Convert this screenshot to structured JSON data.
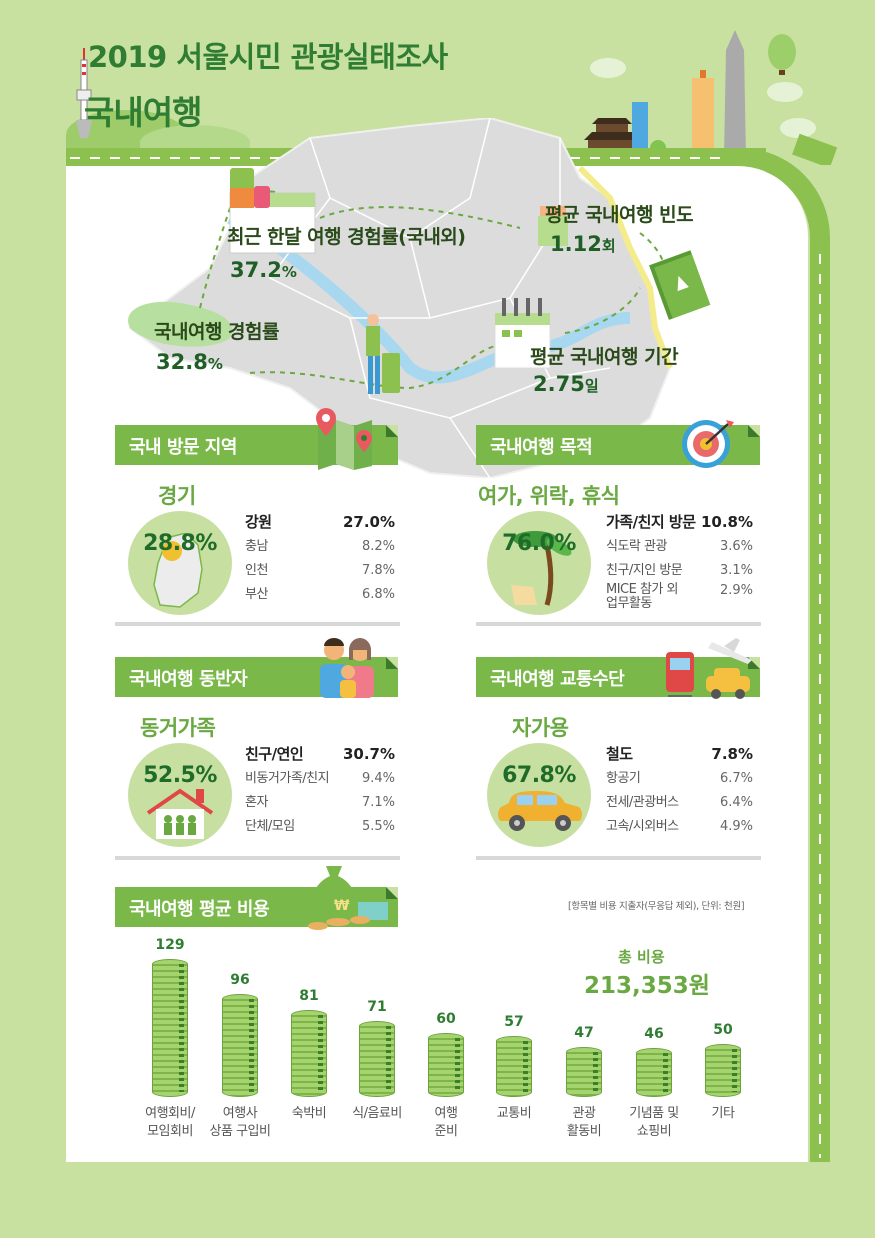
{
  "header": {
    "title_line1": "2019 서울시민 관광실태조사",
    "title_line2": "국내여행"
  },
  "map_stats": {
    "monthly_rate": {
      "label": "최근 한달 여행 경험률(국내외)",
      "value": "37.2",
      "unit": "%"
    },
    "domestic_rate": {
      "label": "국내여행 경험률",
      "value": "32.8",
      "unit": "%"
    },
    "avg_frequency": {
      "label": "평균 국내여행 빈도",
      "value": "1.12",
      "unit": "회"
    },
    "avg_duration": {
      "label": "평균 국내여행 기간",
      "value": "2.75",
      "unit": "일"
    }
  },
  "sections": {
    "region": {
      "banner": "국내 방문 지역",
      "icon": "map-pin-icon",
      "top_label": "경기",
      "top_value": "28.8%",
      "items": [
        {
          "label": "강원",
          "value": "27.0%"
        },
        {
          "label": "충남",
          "value": "8.2%"
        },
        {
          "label": "인천",
          "value": "7.8%"
        },
        {
          "label": "부산",
          "value": "6.8%"
        }
      ]
    },
    "purpose": {
      "banner": "국내여행 목적",
      "icon": "target-icon",
      "top_label": "여가, 위락, 휴식",
      "top_value": "76.0%",
      "items": [
        {
          "label": "가족/친지 방문",
          "value": "10.8%"
        },
        {
          "label": "식도락 관광",
          "value": "3.6%"
        },
        {
          "label": "친구/지인 방문",
          "value": "3.1%"
        },
        {
          "label": "MICE 참가 외",
          "label2": "업무활동",
          "value": "2.9%"
        }
      ]
    },
    "companion": {
      "banner": "국내여행 동반자",
      "icon": "family-icon",
      "top_label": "동거가족",
      "top_value": "52.5%",
      "items": [
        {
          "label": "친구/연인",
          "value": "30.7%"
        },
        {
          "label": "비동거가족/친지",
          "value": "9.4%"
        },
        {
          "label": "혼자",
          "value": "7.1%"
        },
        {
          "label": "단체/모임",
          "value": "5.5%"
        }
      ]
    },
    "transport": {
      "banner": "국내여행 교통수단",
      "icon": "transport-icon",
      "top_label": "자가용",
      "top_value": "67.8%",
      "items": [
        {
          "label": "철도",
          "value": "7.8%"
        },
        {
          "label": "항공기",
          "value": "6.7%"
        },
        {
          "label": "전세/관광버스",
          "value": "6.4%"
        },
        {
          "label": "고속/시외버스",
          "value": "4.9%"
        }
      ]
    }
  },
  "cost": {
    "banner": "국내여행 평균 비용",
    "note": "[항목별 비용 지출자(무응답 제외), 단위: 천원]",
    "total_label": "총 비용",
    "total_value": "213,353원"
  },
  "chart_data": {
    "type": "bar",
    "title": "국내여행 평균 비용",
    "subtitle": "[항목별 비용 지출자(무응답 제외), 단위: 천원]",
    "xlabel": "",
    "ylabel": "천원",
    "categories": [
      "여행회비/모임회비",
      "여행사 상품 구입비",
      "숙박비",
      "식/음료비",
      "여행 준비",
      "교통비",
      "관광 활동비",
      "기념품 및 쇼핑비",
      "기타"
    ],
    "category_lines": [
      [
        "여행회비/",
        "모임회비"
      ],
      [
        "여행사",
        "상품 구입비"
      ],
      [
        "숙박비"
      ],
      [
        "식/음료비"
      ],
      [
        "여행",
        "준비"
      ],
      [
        "교통비"
      ],
      [
        "관광",
        "활동비"
      ],
      [
        "기념품 및",
        "쇼핑비"
      ],
      [
        "기타"
      ]
    ],
    "values": [
      129,
      96,
      81,
      71,
      60,
      57,
      47,
      46,
      50
    ],
    "ylim": [
      0,
      130
    ],
    "grid": false,
    "annotations": [
      {
        "text": "총 비용 213,353원"
      }
    ]
  },
  "colors": {
    "background": "#c8e0a0",
    "banner": "#7ab84a",
    "title": "#2e7d32",
    "accent_green": "#6aa842",
    "circle": "#c7e0a1"
  }
}
